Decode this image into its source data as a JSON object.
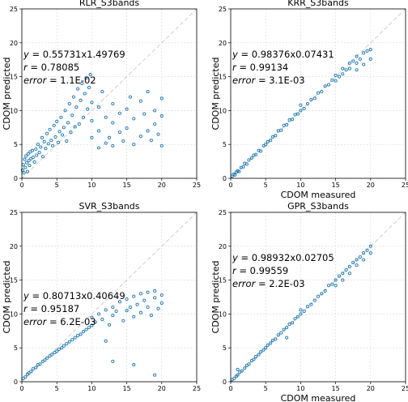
{
  "chart_data": [
    {
      "type": "scatter",
      "title": "RLR_S3bands",
      "xlabel": "",
      "ylabel": "CDOM predicted",
      "xlim": [
        0,
        25
      ],
      "ylim": [
        0,
        25
      ],
      "xticks": [
        "0",
        "5",
        "10",
        "15",
        "20",
        "25"
      ],
      "yticks": [
        "0",
        "5",
        "10",
        "15",
        "20",
        "25"
      ],
      "grid": true,
      "reference_line": "1:1",
      "color": "#1f77b4",
      "annotation": {
        "eq_lhs": "y",
        "eq_rhs": " = 0.55731x1.49769",
        "r_lhs": "r",
        "r_rhs": " = 0.78085",
        "err_lhs": "error",
        "err_rhs": " = 1.1E-02"
      },
      "points": [
        [
          0.1,
          1.2
        ],
        [
          0.2,
          2.0
        ],
        [
          0.3,
          0.8
        ],
        [
          0.4,
          2.8
        ],
        [
          0.5,
          1.6
        ],
        [
          0.6,
          3.3
        ],
        [
          0.7,
          2.3
        ],
        [
          0.8,
          1.0
        ],
        [
          0.9,
          3.6
        ],
        [
          1.0,
          2.6
        ],
        [
          1.1,
          1.9
        ],
        [
          1.2,
          3.9
        ],
        [
          1.3,
          2.9
        ],
        [
          1.5,
          4.1
        ],
        [
          1.6,
          3.1
        ],
        [
          1.8,
          2.4
        ],
        [
          2.0,
          4.3
        ],
        [
          2.1,
          3.4
        ],
        [
          2.3,
          5.0
        ],
        [
          2.5,
          3.8
        ],
        [
          2.7,
          4.6
        ],
        [
          2.9,
          6.0
        ],
        [
          3.0,
          3.2
        ],
        [
          3.2,
          5.4
        ],
        [
          3.4,
          4.4
        ],
        [
          3.6,
          6.6
        ],
        [
          3.8,
          5.1
        ],
        [
          4.0,
          7.2
        ],
        [
          4.2,
          5.6
        ],
        [
          4.4,
          4.8
        ],
        [
          4.6,
          7.8
        ],
        [
          4.8,
          6.1
        ],
        [
          5.0,
          8.4
        ],
        [
          5.2,
          5.3
        ],
        [
          5.4,
          6.9
        ],
        [
          5.6,
          9.0
        ],
        [
          5.8,
          6.4
        ],
        [
          6.0,
          7.5
        ],
        [
          6.2,
          10.0
        ],
        [
          6.4,
          5.5
        ],
        [
          6.6,
          8.2
        ],
        [
          6.8,
          11.0
        ],
        [
          7.0,
          6.8
        ],
        [
          7.2,
          9.3
        ],
        [
          7.4,
          12.0
        ],
        [
          7.6,
          7.6
        ],
        [
          7.8,
          10.5
        ],
        [
          8.0,
          13.2
        ],
        [
          8.2,
          8.0
        ],
        [
          8.4,
          11.5
        ],
        [
          8.6,
          14.0
        ],
        [
          8.8,
          9.0
        ],
        [
          9.0,
          12.5
        ],
        [
          9.2,
          14.8
        ],
        [
          9.4,
          10.2
        ],
        [
          9.6,
          13.4
        ],
        [
          9.8,
          15.3
        ],
        [
          10.0,
          11.2
        ],
        [
          10.0,
          6.0
        ],
        [
          10.0,
          8.5
        ],
        [
          11.0,
          4.5
        ],
        [
          11.0,
          7.0
        ],
        [
          11.0,
          10.5
        ],
        [
          11.5,
          12.8
        ],
        [
          12.0,
          5.2
        ],
        [
          12.0,
          9.0
        ],
        [
          12.5,
          6.0
        ],
        [
          13.0,
          4.8
        ],
        [
          13.0,
          8.2
        ],
        [
          13.0,
          11.0
        ],
        [
          14.0,
          6.8
        ],
        [
          14.0,
          9.6
        ],
        [
          14.5,
          5.5
        ],
        [
          15.0,
          7.4
        ],
        [
          15.0,
          10.2
        ],
        [
          15.5,
          12.0
        ],
        [
          16.0,
          5.0
        ],
        [
          16.0,
          8.8
        ],
        [
          17.0,
          6.2
        ],
        [
          17.0,
          11.4
        ],
        [
          17.5,
          9.5
        ],
        [
          18.0,
          7.0
        ],
        [
          18.0,
          12.8
        ],
        [
          18.5,
          5.6
        ],
        [
          19.0,
          10.0
        ],
        [
          19.0,
          8.0
        ],
        [
          19.5,
          6.5
        ],
        [
          20.0,
          11.8
        ],
        [
          20.0,
          9.2
        ],
        [
          20.0,
          4.8
        ]
      ]
    },
    {
      "type": "scatter",
      "title": "KRR_S3bands",
      "xlabel": "CDOM measured",
      "ylabel": "CDOM predicted",
      "xlim": [
        0,
        25
      ],
      "ylim": [
        0,
        25
      ],
      "xticks": [
        "0",
        "5",
        "10",
        "15",
        "20",
        "25"
      ],
      "yticks": [
        "0",
        "5",
        "10",
        "15",
        "20",
        "25"
      ],
      "grid": true,
      "reference_line": "1:1",
      "color": "#1f77b4",
      "annotation": {
        "eq_lhs": "y",
        "eq_rhs": " = 0.98376x0.07431",
        "r_lhs": "r",
        "r_rhs": " = 0.99134",
        "err_lhs": "error",
        "err_rhs": " = 3.1E-03"
      },
      "points": [
        [
          0.2,
          0.3
        ],
        [
          0.4,
          0.6
        ],
        [
          0.6,
          0.5
        ],
        [
          0.8,
          0.9
        ],
        [
          1.0,
          1.1
        ],
        [
          1.2,
          1.0
        ],
        [
          1.5,
          1.6
        ],
        [
          1.8,
          1.7
        ],
        [
          2.0,
          2.2
        ],
        [
          2.3,
          2.1
        ],
        [
          2.6,
          2.7
        ],
        [
          3.0,
          3.0
        ],
        [
          3.3,
          3.4
        ],
        [
          3.6,
          3.5
        ],
        [
          4.0,
          4.1
        ],
        [
          4.3,
          4.0
        ],
        [
          4.7,
          4.8
        ],
        [
          5.0,
          5.0
        ],
        [
          5.3,
          5.4
        ],
        [
          5.7,
          5.6
        ],
        [
          6.0,
          6.1
        ],
        [
          6.4,
          6.3
        ],
        [
          6.8,
          7.0
        ],
        [
          7.2,
          7.1
        ],
        [
          7.6,
          7.8
        ],
        [
          8.0,
          7.9
        ],
        [
          8.4,
          8.6
        ],
        [
          8.8,
          8.7
        ],
        [
          9.2,
          9.4
        ],
        [
          9.6,
          9.5
        ],
        [
          10.0,
          10.0
        ],
        [
          10.0,
          10.8
        ],
        [
          10.5,
          10.3
        ],
        [
          11.0,
          11.0
        ],
        [
          11.5,
          11.6
        ],
        [
          12.0,
          11.8
        ],
        [
          12.5,
          12.6
        ],
        [
          13.0,
          12.8
        ],
        [
          13.5,
          13.6
        ],
        [
          14.0,
          13.8
        ],
        [
          14.5,
          14.5
        ],
        [
          15.0,
          15.2
        ],
        [
          15.0,
          14.4
        ],
        [
          15.5,
          15.0
        ],
        [
          16.0,
          16.2
        ],
        [
          16.0,
          15.4
        ],
        [
          16.5,
          16.0
        ],
        [
          17.0,
          17.0
        ],
        [
          17.0,
          16.2
        ],
        [
          17.5,
          17.3
        ],
        [
          18.0,
          18.0
        ],
        [
          18.0,
          17.0
        ],
        [
          18.0,
          16.0
        ],
        [
          18.5,
          17.6
        ],
        [
          19.0,
          18.5
        ],
        [
          19.0,
          16.8
        ],
        [
          19.5,
          18.8
        ],
        [
          20.0,
          19.0
        ],
        [
          20.0,
          17.6
        ]
      ]
    },
    {
      "type": "scatter",
      "title": "SVR_S3bands",
      "xlabel": "",
      "ylabel": "CDOM predicted",
      "xlim": [
        0,
        25
      ],
      "ylim": [
        0,
        25
      ],
      "xticks": [
        "0",
        "5",
        "10",
        "15",
        "20",
        "25"
      ],
      "yticks": [
        "0",
        "5",
        "10",
        "15",
        "20",
        "25"
      ],
      "grid": true,
      "reference_line": "1:1",
      "color": "#1f77b4",
      "annotation": {
        "eq_lhs": "y",
        "eq_rhs": " = 0.80713x0.40649",
        "r_lhs": "r",
        "r_rhs": " = 0.95187",
        "err_lhs": "error",
        "err_rhs": " = 6.2E-03"
      },
      "points": [
        [
          0.2,
          0.5
        ],
        [
          0.5,
          0.7
        ],
        [
          0.8,
          1.1
        ],
        [
          1.0,
          1.3
        ],
        [
          1.3,
          1.5
        ],
        [
          1.6,
          1.9
        ],
        [
          2.0,
          2.1
        ],
        [
          2.3,
          2.5
        ],
        [
          2.6,
          2.6
        ],
        [
          3.0,
          3.0
        ],
        [
          3.3,
          3.2
        ],
        [
          3.6,
          3.5
        ],
        [
          4.0,
          3.8
        ],
        [
          4.3,
          4.0
        ],
        [
          4.7,
          4.3
        ],
        [
          5.0,
          4.5
        ],
        [
          5.3,
          4.8
        ],
        [
          5.7,
          5.0
        ],
        [
          6.0,
          5.3
        ],
        [
          6.4,
          5.6
        ],
        [
          6.8,
          5.9
        ],
        [
          7.2,
          6.2
        ],
        [
          7.6,
          6.5
        ],
        [
          8.0,
          6.8
        ],
        [
          8.4,
          7.0
        ],
        [
          8.8,
          7.4
        ],
        [
          9.2,
          7.7
        ],
        [
          9.6,
          8.0
        ],
        [
          10.0,
          8.3
        ],
        [
          10.0,
          9.5
        ],
        [
          10.5,
          8.8
        ],
        [
          11.0,
          10.0
        ],
        [
          11.5,
          9.2
        ],
        [
          12.0,
          10.6
        ],
        [
          12.5,
          8.4
        ],
        [
          13.0,
          11.0
        ],
        [
          13.0,
          9.8
        ],
        [
          13.5,
          10.4
        ],
        [
          14.0,
          11.8
        ],
        [
          14.5,
          9.0
        ],
        [
          15.0,
          12.2
        ],
        [
          15.0,
          10.5
        ],
        [
          15.5,
          11.0
        ],
        [
          16.0,
          12.6
        ],
        [
          16.0,
          9.6
        ],
        [
          16.5,
          11.4
        ],
        [
          17.0,
          13.0
        ],
        [
          17.0,
          10.2
        ],
        [
          17.5,
          12.0
        ],
        [
          18.0,
          13.2
        ],
        [
          18.0,
          11.0
        ],
        [
          18.5,
          9.8
        ],
        [
          19.0,
          12.4
        ],
        [
          19.0,
          13.4
        ],
        [
          19.5,
          10.8
        ],
        [
          20.0,
          12.8
        ],
        [
          20.0,
          11.6
        ],
        [
          13.0,
          3.0
        ],
        [
          16.0,
          2.5
        ],
        [
          19.0,
          1.0
        ],
        [
          12.0,
          6.0
        ]
      ]
    },
    {
      "type": "scatter",
      "title": "GPR_S3bands",
      "xlabel": "CDOM measured",
      "ylabel": "CDOM predicted",
      "xlim": [
        0,
        25
      ],
      "ylim": [
        0,
        25
      ],
      "xticks": [
        "0",
        "5",
        "10",
        "15",
        "20",
        "25"
      ],
      "yticks": [
        "0",
        "5",
        "10",
        "15",
        "20",
        "25"
      ],
      "grid": true,
      "reference_line": "1:1",
      "color": "#1f77b4",
      "annotation": {
        "eq_lhs": "y",
        "eq_rhs": " = 0.98932x0.02705",
        "r_lhs": "r",
        "r_rhs": " = 0.99559",
        "err_lhs": "error",
        "err_rhs": " = 2.2E-03"
      },
      "points": [
        [
          0.2,
          0.3
        ],
        [
          0.5,
          0.5
        ],
        [
          0.8,
          0.8
        ],
        [
          1.0,
          1.0
        ],
        [
          1.3,
          1.4
        ],
        [
          1.6,
          1.6
        ],
        [
          2.0,
          2.0
        ],
        [
          2.3,
          2.4
        ],
        [
          2.6,
          2.6
        ],
        [
          3.0,
          3.1
        ],
        [
          3.3,
          3.3
        ],
        [
          3.6,
          3.7
        ],
        [
          4.0,
          4.0
        ],
        [
          4.3,
          4.4
        ],
        [
          4.7,
          4.7
        ],
        [
          5.0,
          5.0
        ],
        [
          5.3,
          5.4
        ],
        [
          5.7,
          5.7
        ],
        [
          6.0,
          6.1
        ],
        [
          6.4,
          6.3
        ],
        [
          6.8,
          6.9
        ],
        [
          7.2,
          7.2
        ],
        [
          7.6,
          7.7
        ],
        [
          8.0,
          8.0
        ],
        [
          8.4,
          8.5
        ],
        [
          8.8,
          8.7
        ],
        [
          9.2,
          9.3
        ],
        [
          9.6,
          9.6
        ],
        [
          10.0,
          10.0
        ],
        [
          10.0,
          10.6
        ],
        [
          10.5,
          10.4
        ],
        [
          11.0,
          11.1
        ],
        [
          11.5,
          11.4
        ],
        [
          12.0,
          12.0
        ],
        [
          12.5,
          12.6
        ],
        [
          13.0,
          13.0
        ],
        [
          13.5,
          13.4
        ],
        [
          14.0,
          14.2
        ],
        [
          14.5,
          14.4
        ],
        [
          15.0,
          15.0
        ],
        [
          15.0,
          14.2
        ],
        [
          15.5,
          15.6
        ],
        [
          16.0,
          16.0
        ],
        [
          16.0,
          15.0
        ],
        [
          16.5,
          16.5
        ],
        [
          17.0,
          17.0
        ],
        [
          17.0,
          16.0
        ],
        [
          17.5,
          17.6
        ],
        [
          18.0,
          18.0
        ],
        [
          18.0,
          17.2
        ],
        [
          18.5,
          18.4
        ],
        [
          19.0,
          19.0
        ],
        [
          19.0,
          18.0
        ],
        [
          19.5,
          19.4
        ],
        [
          20.0,
          20.0
        ],
        [
          20.0,
          19.0
        ],
        [
          1.0,
          1.8
        ],
        [
          8.0,
          6.5
        ]
      ]
    }
  ]
}
